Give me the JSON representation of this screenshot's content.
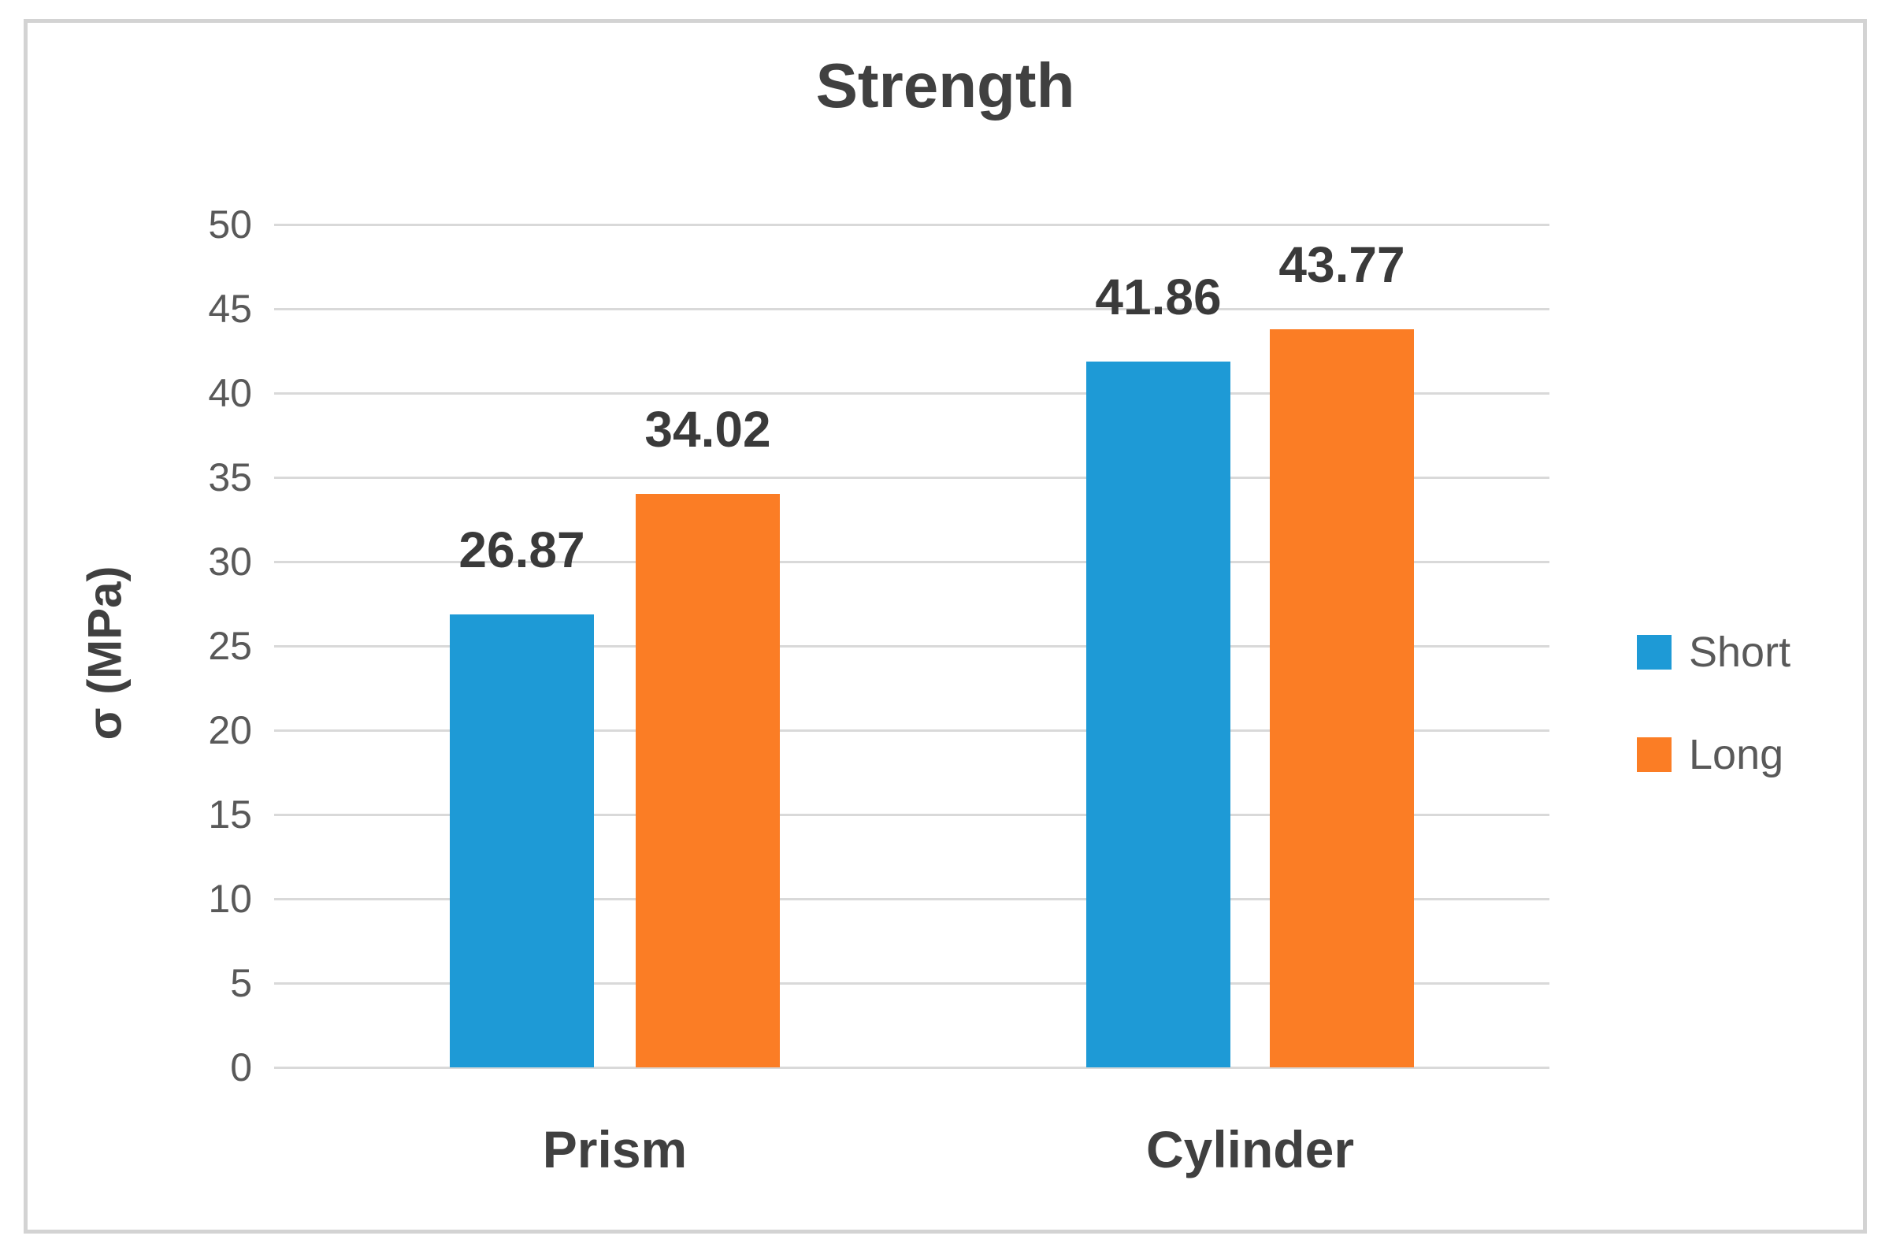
{
  "chart_data": {
    "type": "bar",
    "title": "Strength",
    "ylabel": "σ (MPa)",
    "xlabel": "",
    "categories": [
      "Prism",
      "Cylinder"
    ],
    "series": [
      {
        "name": "Short",
        "color": "#1e9ad6",
        "values": [
          26.87,
          41.86
        ],
        "data_labels": [
          "26.87",
          "41.86"
        ]
      },
      {
        "name": "Long",
        "color": "#fb7d25",
        "values": [
          34.02,
          43.77
        ],
        "data_labels": [
          "34.02",
          "43.77"
        ]
      }
    ],
    "ylim": [
      0,
      50
    ],
    "yticks": [
      0,
      5,
      10,
      15,
      20,
      25,
      30,
      35,
      40,
      45,
      50
    ],
    "grid": true,
    "legend_position": "right"
  },
  "style": {
    "background": "#ffffff",
    "frame_border_color": "#d3d3d3",
    "grid_color": "#d9d9d9",
    "title_color": "#404040",
    "axis_title_color": "#404040",
    "tick_label_color": "#595959",
    "data_label_color": "#3a3a3a",
    "category_label_color": "#404040",
    "legend_text_color": "#595959"
  }
}
